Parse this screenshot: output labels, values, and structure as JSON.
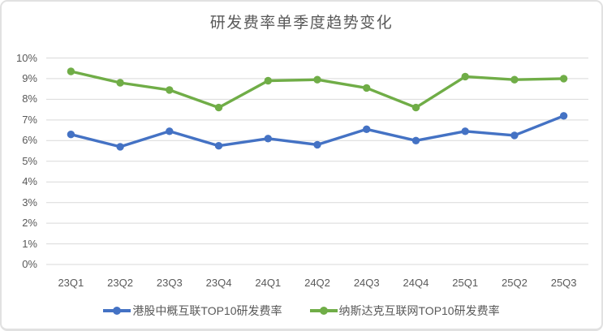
{
  "chart_data": {
    "type": "line",
    "title": "研发费率单季度趋势变化",
    "categories": [
      "23Q1",
      "23Q2",
      "23Q3",
      "23Q4",
      "24Q1",
      "24Q2",
      "24Q3",
      "24Q4",
      "25Q1",
      "25Q2",
      "25Q3"
    ],
    "series": [
      {
        "name": "港股中概互联TOP10研发费率",
        "color": "#4472C4",
        "values": [
          6.3,
          5.7,
          6.45,
          5.75,
          6.1,
          5.8,
          6.55,
          6.0,
          6.45,
          6.25,
          7.2
        ]
      },
      {
        "name": "纳斯达克互联网TOP10研发费率",
        "color": "#70AD47",
        "values": [
          9.35,
          8.8,
          8.45,
          7.6,
          8.9,
          8.95,
          8.55,
          7.6,
          9.1,
          8.95,
          9.0
        ]
      }
    ],
    "xlabel": "",
    "ylabel": "",
    "ylim": [
      0,
      10
    ],
    "ytick_step": 1,
    "ytick_labels": [
      "0%",
      "1%",
      "2%",
      "3%",
      "4%",
      "5%",
      "6%",
      "7%",
      "8%",
      "9%",
      "10%"
    ],
    "grid": true,
    "legend_position": "bottom",
    "colors": {
      "gridline": "#D9D9D9",
      "axis_text": "#595959",
      "title_text": "#595959",
      "frame_border": "#E1E1E1",
      "background": "#FFFFFF"
    }
  }
}
